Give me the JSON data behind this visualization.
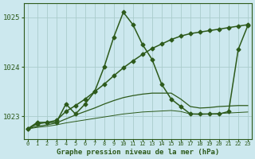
{
  "title": "Graphe pression niveau de la mer (hPa)",
  "bg_color": "#cce8ee",
  "grid_color": "#aacccc",
  "line_color": "#2d5a1b",
  "x_ticks": [
    0,
    1,
    2,
    3,
    4,
    5,
    6,
    7,
    8,
    9,
    10,
    11,
    12,
    13,
    14,
    15,
    16,
    17,
    18,
    19,
    20,
    21,
    22,
    23
  ],
  "y_ticks": [
    1023,
    1024,
    1025
  ],
  "ylim": [
    1022.55,
    1025.28
  ],
  "xlim": [
    -0.4,
    23.4
  ],
  "lines": [
    {
      "x": [
        0,
        1,
        2,
        3,
        4,
        5,
        6,
        7,
        8,
        9,
        10,
        11,
        12,
        13,
        14,
        15,
        16,
        17,
        18,
        19,
        20,
        21,
        22,
        23
      ],
      "y": [
        1022.75,
        1022.88,
        1022.88,
        1022.88,
        1023.25,
        1023.05,
        1023.25,
        1023.5,
        1024.0,
        1024.6,
        1025.1,
        1024.85,
        1024.45,
        1024.15,
        1023.65,
        1023.35,
        1023.2,
        1023.05,
        1023.05,
        1023.05,
        1023.05,
        1023.1,
        1024.35,
        1024.83
      ],
      "marker": "D",
      "markersize": 2.5,
      "linewidth": 1.1,
      "linestyle": "-"
    },
    {
      "x": [
        0,
        1,
        2,
        3,
        4,
        5,
        6,
        7,
        8,
        9,
        10,
        11,
        12,
        13,
        14,
        15,
        16,
        17,
        18,
        19,
        20,
        21,
        22,
        23
      ],
      "y": [
        1022.75,
        1022.85,
        1022.88,
        1022.92,
        1023.1,
        1023.22,
        1023.35,
        1023.5,
        1023.65,
        1023.82,
        1023.98,
        1024.12,
        1024.25,
        1024.37,
        1024.46,
        1024.55,
        1024.62,
        1024.67,
        1024.7,
        1024.73,
        1024.76,
        1024.79,
        1024.82,
        1024.85
      ],
      "marker": "D",
      "markersize": 2.5,
      "linewidth": 1.1,
      "linestyle": "-"
    },
    {
      "x": [
        0,
        1,
        2,
        3,
        4,
        5,
        6,
        7,
        8,
        9,
        10,
        11,
        12,
        13,
        14,
        15,
        16,
        17,
        18,
        19,
        20,
        21,
        22,
        23
      ],
      "y": [
        1022.75,
        1022.8,
        1022.83,
        1022.87,
        1022.95,
        1023.03,
        1023.1,
        1023.17,
        1023.25,
        1023.32,
        1023.38,
        1023.42,
        1023.45,
        1023.47,
        1023.47,
        1023.47,
        1023.35,
        1023.2,
        1023.17,
        1023.18,
        1023.2,
        1023.21,
        1023.22,
        1023.22
      ],
      "marker": null,
      "markersize": 0,
      "linewidth": 0.9,
      "linestyle": "-"
    },
    {
      "x": [
        0,
        1,
        2,
        3,
        4,
        5,
        6,
        7,
        8,
        9,
        10,
        11,
        12,
        13,
        14,
        15,
        16,
        17,
        18,
        19,
        20,
        21,
        22,
        23
      ],
      "y": [
        1022.75,
        1022.78,
        1022.8,
        1022.83,
        1022.87,
        1022.9,
        1022.93,
        1022.96,
        1022.99,
        1023.02,
        1023.05,
        1023.07,
        1023.09,
        1023.1,
        1023.11,
        1023.12,
        1023.1,
        1023.05,
        1023.04,
        1023.05,
        1023.06,
        1023.07,
        1023.08,
        1023.09
      ],
      "marker": null,
      "markersize": 0,
      "linewidth": 0.7,
      "linestyle": "-"
    }
  ]
}
